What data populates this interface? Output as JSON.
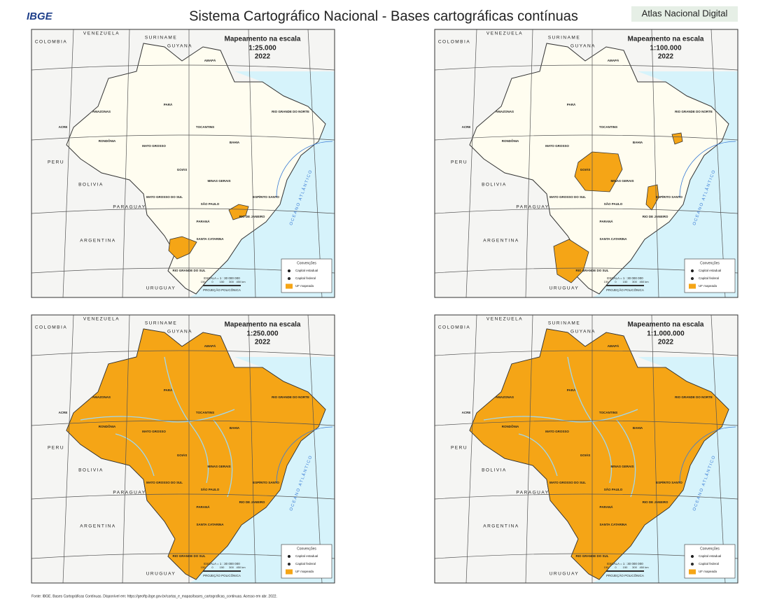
{
  "header": {
    "logo": "IBGE",
    "title": "Sistema Cartográfico Nacional - Bases cartográficas contínuas",
    "badge": "Atlas Nacional Digital"
  },
  "maps": [
    {
      "title": "Mapeamento na escala",
      "scale": "1:25.000",
      "year": "2022"
    },
    {
      "title": "Mapeamento na escala",
      "scale": "1:100.000",
      "year": "2022"
    },
    {
      "title": "Mapeamento na escala",
      "scale": "1:250.000",
      "year": "2022"
    },
    {
      "title": "Mapeamento na escala",
      "scale": "1:1.000.000",
      "year": "2022"
    }
  ],
  "countries": [
    "VENEZUELA",
    "COLOMBIA",
    "SURINAME",
    "GUYANA",
    "PERU",
    "BOLIVIA",
    "PARAGUAY",
    "ARGENTINA",
    "URUGUAY"
  ],
  "states": [
    "AMAZONAS",
    "PARÁ",
    "MATO GROSSO",
    "BAHIA",
    "GOIÁS",
    "MINAS GERAIS",
    "MATO GROSSO DO SUL",
    "TOCANTINS",
    "RIO GRANDE DO NORTE",
    "ESPÍRITO SANTO",
    "RIO DE JANEIRO",
    "SÃO PAULO",
    "PARANÁ",
    "SANTA CATARINA",
    "RIO GRANDE DO SUL",
    "ACRE",
    "RONDÔNIA",
    "AMAPÁ"
  ],
  "ocean": "OCEANO ATLÂNTICO",
  "legend": {
    "title": "Convenções",
    "items": [
      "Capital estadual",
      "Capital federal",
      "UF mapeada"
    ]
  },
  "scale_bar": {
    "text": "ESCALA = 1 : 30 000 000",
    "ticks": [
      "150",
      "0",
      "150",
      "300",
      "450 km"
    ],
    "projection": "PROJEÇÃO POLICÔNICA"
  },
  "source": "Fonte: IBGE. Bases Cartográficas Contínuas. Disponível em: https://geoftp.ibge.gov.br/cartas_e_mapas/bases_cartograficas_continuas. Acesso em abr. 2022."
}
